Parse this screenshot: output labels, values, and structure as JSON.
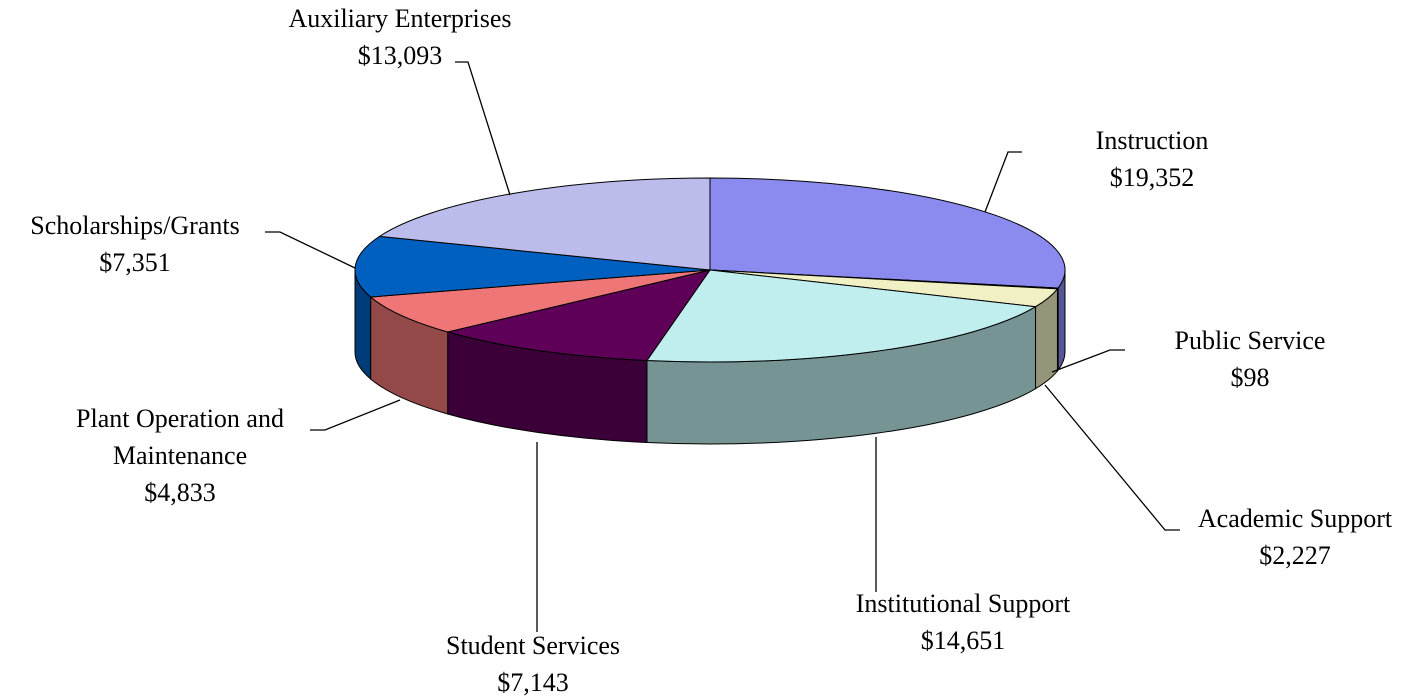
{
  "chart_data": {
    "type": "pie3d",
    "categories": [
      "Instruction",
      "Public Service",
      "Academic Support",
      "Institutional Support",
      "Student Services",
      "Plant Operation and Maintenance",
      "Scholarships/Grants",
      "Auxiliary Enterprises"
    ],
    "values": [
      19352,
      98,
      2227,
      14651,
      7143,
      4833,
      7351,
      13093
    ],
    "value_labels": [
      "$19,352",
      "$98",
      "$2,227",
      "$14,651",
      "$7,143",
      "$4,833",
      "$7,351",
      "$13,093"
    ],
    "colors": [
      "#8b8bef",
      "#5a5a7a",
      "#f0f0c4",
      "#c0eeee",
      "#5e0058",
      "#ee7676",
      "#0060c0",
      "#bcbcec"
    ]
  }
}
